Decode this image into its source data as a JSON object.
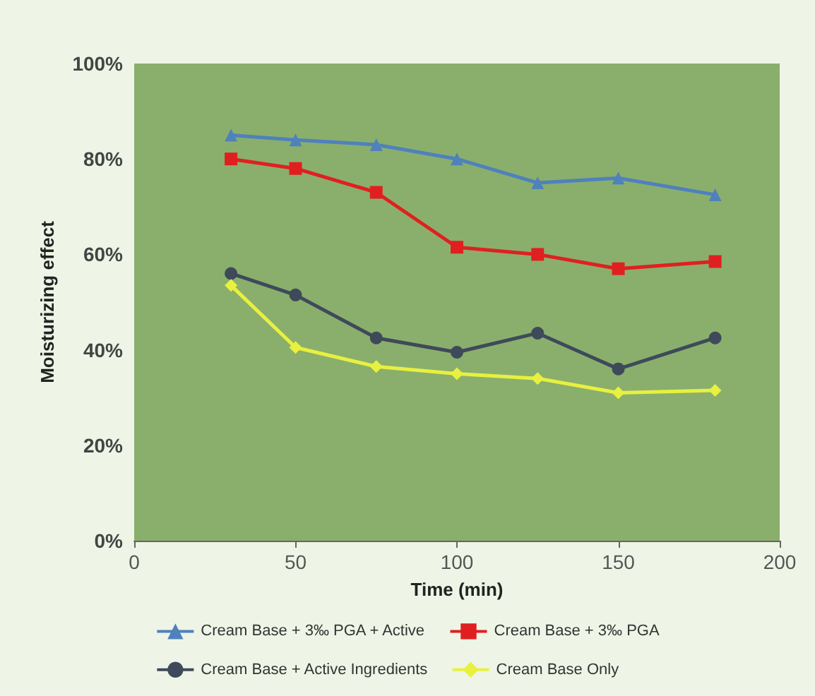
{
  "chart_data": {
    "type": "line",
    "xlabel": "Time (min)",
    "ylabel": "Moisturizing effect",
    "x": [
      30,
      50,
      75,
      100,
      125,
      150,
      180
    ],
    "series": [
      {
        "name": "Cream Base + 3‰ PGA + Active",
        "color": "#4f81bd",
        "marker": "triangle",
        "values": [
          85,
          84,
          83,
          80,
          75,
          76,
          72.5
        ]
      },
      {
        "name": "Cream Base + 3‰ PGA",
        "color": "#e02020",
        "marker": "square",
        "values": [
          80,
          78,
          73,
          61.5,
          60,
          57,
          58.5
        ]
      },
      {
        "name": "Cream Base + Active Ingredients",
        "color": "#3e4a5a",
        "marker": "circle",
        "values": [
          56,
          51.5,
          42.5,
          39.5,
          43.5,
          36,
          42.5
        ]
      },
      {
        "name": "Cream Base Only",
        "color": "#e8f040",
        "marker": "diamond",
        "values": [
          53.5,
          40.5,
          36.5,
          35,
          34,
          31,
          31.5
        ]
      }
    ],
    "xlim": [
      0,
      200
    ],
    "xticks": [
      0,
      50,
      100,
      150,
      200
    ],
    "ylim": [
      0,
      100
    ],
    "yticks": [
      {
        "value": 0,
        "label": "0%"
      },
      {
        "value": 20,
        "label": "20%"
      },
      {
        "value": 40,
        "label": "40%"
      },
      {
        "value": 60,
        "label": "60%"
      },
      {
        "value": 80,
        "label": "80%"
      },
      {
        "value": 100,
        "label": "100%"
      }
    ],
    "grid": false,
    "legend": "bottom",
    "line_style": "solid"
  }
}
